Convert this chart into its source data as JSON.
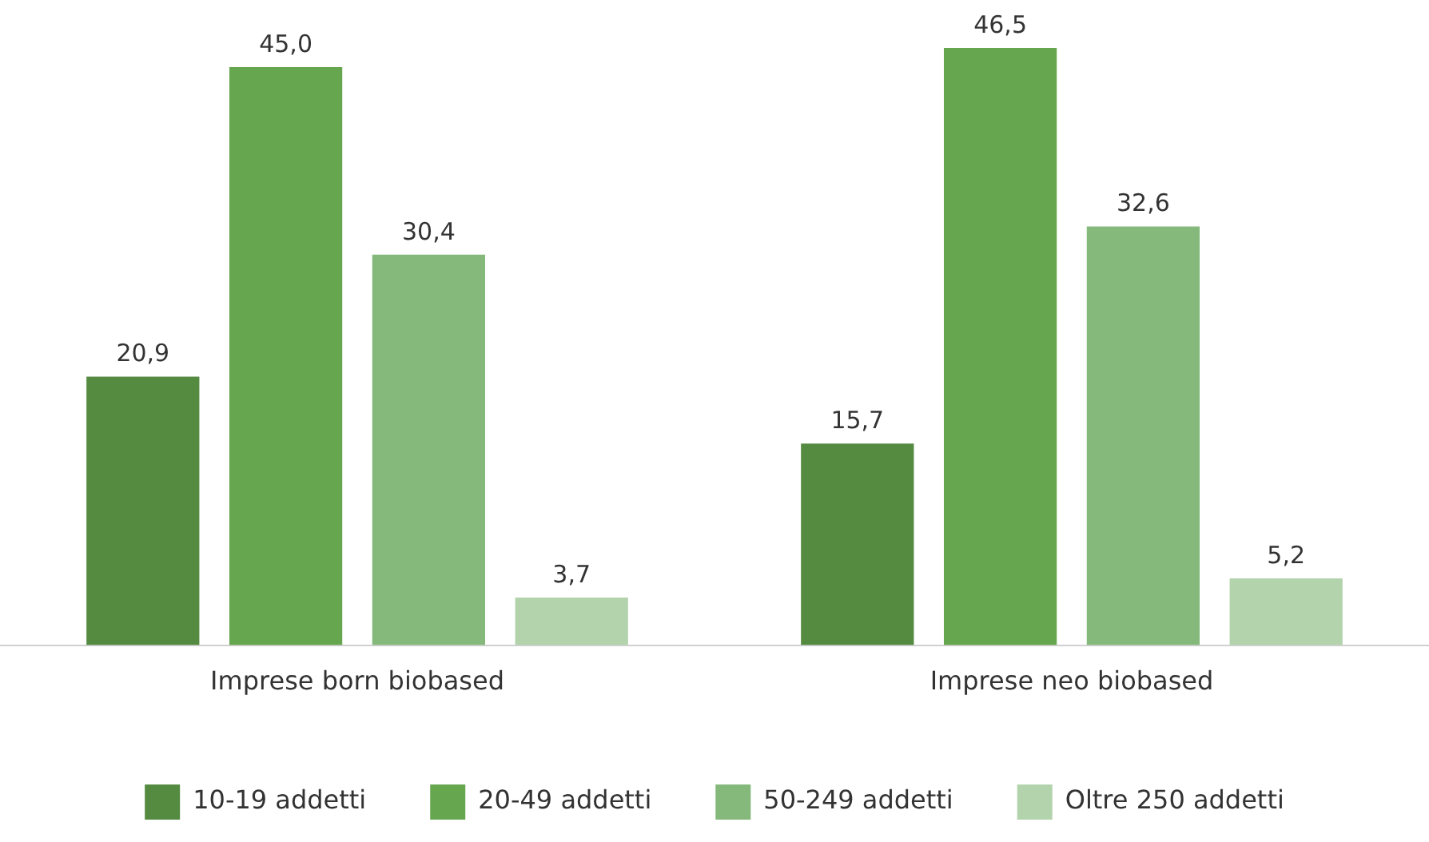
{
  "chart_data": {
    "type": "bar",
    "categories": [
      "Imprese born biobased",
      "Imprese neo biobased"
    ],
    "series": [
      {
        "name": "10-19 addetti",
        "color": "#548b41",
        "values": [
          20.9,
          15.7
        ],
        "value_labels": [
          "20,9",
          "15,7"
        ]
      },
      {
        "name": "20-49 addetti",
        "color": "#65a64e",
        "values": [
          45.0,
          46.5
        ],
        "value_labels": [
          "45,0",
          "46,5"
        ]
      },
      {
        "name": "50-249 addetti",
        "color": "#84b97b",
        "values": [
          30.4,
          32.6
        ],
        "value_labels": [
          "30,4",
          "32,6"
        ]
      },
      {
        "name": "Oltre 250 addetti",
        "color": "#b3d3ad",
        "values": [
          3.7,
          5.2
        ],
        "value_labels": [
          "3,7",
          "5,2"
        ]
      }
    ],
    "legend": "bottom",
    "tick_labels": "x"
  }
}
